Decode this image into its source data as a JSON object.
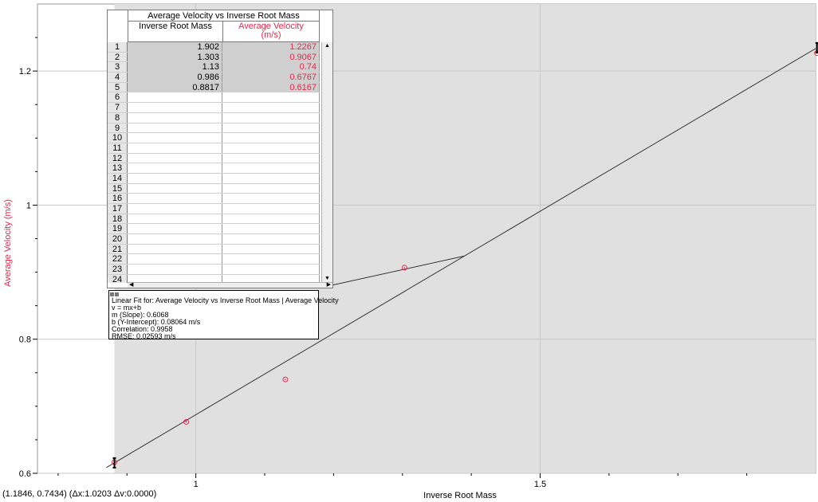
{
  "chart_data": {
    "type": "scatter",
    "xlabel": "Inverse Root Mass",
    "ylabel": "Average Velocity (m/s)",
    "xlim": [
      0.8817,
      1.902
    ],
    "ylim": [
      0.6,
      1.3
    ],
    "x_ticks": [
      1,
      1.5
    ],
    "y_ticks": [
      0.6,
      0.8,
      1,
      1.2
    ],
    "x_tick_labels": [
      "1",
      "1.5"
    ],
    "y_tick_labels": [
      "0.6",
      "0.8",
      "1",
      "1.2"
    ],
    "grid": true,
    "series": [
      {
        "name": "Average Velocity",
        "x": [
          1.902,
          1.303,
          1.13,
          0.986,
          0.8817
        ],
        "y": [
          1.2267,
          0.9067,
          0.74,
          0.6767,
          0.6167
        ]
      }
    ],
    "fit_line": {
      "slope": 0.6068,
      "intercept": 0.08064
    },
    "colors": {
      "points": "#e8264a",
      "line": "#333333",
      "shaded_region": "#e0e0e0",
      "ylabel": "#e8264a"
    }
  },
  "status_text": "(1.1846, 0.7434) (Δx:1.0203 Δv:0.0000)",
  "data_table": {
    "title": "Average Velocity vs Inverse Root Mass",
    "col_x": "Inverse Root Mass",
    "col_y_line1": "Average Velocity",
    "col_y_line2": "(m/s)",
    "rows": [
      {
        "n": "1",
        "x": "1.902",
        "y": "1.2267"
      },
      {
        "n": "2",
        "x": "1.303",
        "y": "0.9067"
      },
      {
        "n": "3",
        "x": "1.13",
        "y": "0.74"
      },
      {
        "n": "4",
        "x": "0.986",
        "y": "0.6767"
      },
      {
        "n": "5",
        "x": "0.8817",
        "y": "0.6167"
      },
      {
        "n": "6",
        "x": "",
        "y": ""
      },
      {
        "n": "7",
        "x": "",
        "y": ""
      },
      {
        "n": "8",
        "x": "",
        "y": ""
      },
      {
        "n": "9",
        "x": "",
        "y": ""
      },
      {
        "n": "10",
        "x": "",
        "y": ""
      },
      {
        "n": "11",
        "x": "",
        "y": ""
      },
      {
        "n": "12",
        "x": "",
        "y": ""
      },
      {
        "n": "13",
        "x": "",
        "y": ""
      },
      {
        "n": "14",
        "x": "",
        "y": ""
      },
      {
        "n": "15",
        "x": "",
        "y": ""
      },
      {
        "n": "16",
        "x": "",
        "y": ""
      },
      {
        "n": "17",
        "x": "",
        "y": ""
      },
      {
        "n": "18",
        "x": "",
        "y": ""
      },
      {
        "n": "19",
        "x": "",
        "y": ""
      },
      {
        "n": "20",
        "x": "",
        "y": ""
      },
      {
        "n": "21",
        "x": "",
        "y": ""
      },
      {
        "n": "22",
        "x": "",
        "y": ""
      },
      {
        "n": "23",
        "x": "",
        "y": ""
      },
      {
        "n": "24",
        "x": "",
        "y": ""
      }
    ]
  },
  "fit_box": {
    "line1": "Linear Fit for: Average Velocity vs Inverse Root Mass | Average Velocity",
    "line2": "v = mx+b",
    "line3": "m (Slope): 0.6068",
    "line4": "b (Y-Intercept): 0.08064 m/s",
    "line5": "Correlation: 0.9958",
    "line6": "RMSE: 0.02593 m/s"
  }
}
